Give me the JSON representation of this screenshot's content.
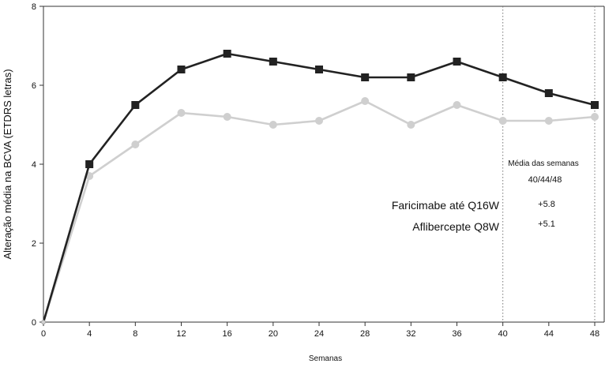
{
  "chart_data": {
    "type": "line",
    "title": "",
    "xlabel": "Semanas",
    "ylabel": "Alteração média na BCVA (ETDRS letras)",
    "x": [
      0,
      4,
      8,
      12,
      16,
      20,
      24,
      28,
      32,
      36,
      40,
      44,
      48
    ],
    "x_tick_labels": [
      "0",
      "4",
      "8",
      "12",
      "16",
      "20",
      "24",
      "28",
      "32",
      "36",
      "40",
      "44",
      "48"
    ],
    "y_tick_labels": [
      "0",
      "2",
      "4",
      "6",
      "8"
    ],
    "xlim": [
      0,
      48
    ],
    "ylim": [
      0,
      8
    ],
    "grid": false,
    "legend": "inline",
    "series": [
      {
        "name": "Faricimabe até Q16W",
        "color": "#222222",
        "marker": "square",
        "values": [
          0,
          4.0,
          5.5,
          6.4,
          6.8,
          6.6,
          6.4,
          6.2,
          6.2,
          6.6,
          6.2,
          5.8,
          5.5
        ]
      },
      {
        "name": "Aflibercepte Q8W",
        "color": "#cfcfcf",
        "marker": "circle",
        "values": [
          0,
          3.7,
          4.5,
          5.3,
          5.2,
          5.0,
          5.1,
          5.6,
          5.0,
          5.5,
          5.1,
          5.1,
          5.2
        ]
      }
    ],
    "reference_lines_x": [
      40,
      48
    ],
    "annotation": {
      "heading_line1": "Média das semanas",
      "heading_line2": "40/44/48",
      "values": [
        "+5.8",
        "+5.1"
      ]
    }
  }
}
